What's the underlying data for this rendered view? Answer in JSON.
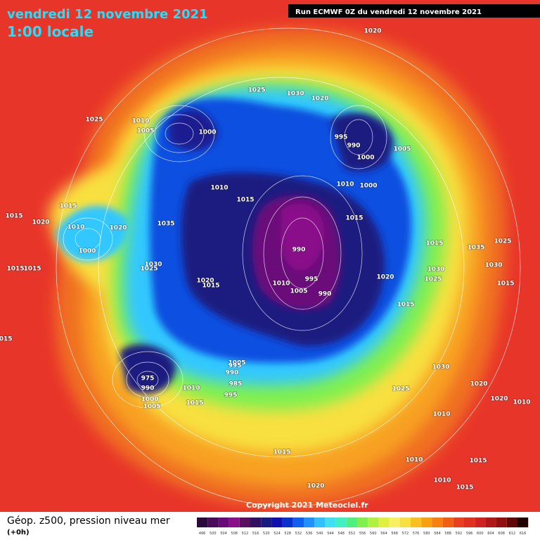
{
  "header": {
    "title": "vendredi 12 novembre 2021",
    "subtitle": "1:00 locale",
    "run": "Run ECMWF 0Z du vendredi 12 novembre 2021"
  },
  "copyright": "Copyright 2021 Meteociel.fr",
  "footer": {
    "label": "Géop. z500, pression niveau mer",
    "step": "(+0h)"
  },
  "legend": {
    "labels": [
      "496",
      "500",
      "504",
      "508",
      "512",
      "516",
      "520",
      "524",
      "528",
      "532",
      "536",
      "540",
      "544",
      "548",
      "552",
      "556",
      "560",
      "564",
      "568",
      "572",
      "576",
      "580",
      "584",
      "588",
      "592",
      "596",
      "600",
      "604",
      "608",
      "612",
      "616"
    ],
    "colors": [
      "#2a0a3a",
      "#4a0a5a",
      "#6a0a7a",
      "#8a108a",
      "#5a1060",
      "#301060",
      "#1a1a80",
      "#1010b0",
      "#0a30d0",
      "#1060f0",
      "#2090ff",
      "#30c0ff",
      "#40e0f0",
      "#40f0c0",
      "#50f080",
      "#80f050",
      "#b0f040",
      "#e0f040",
      "#f8f060",
      "#f8e040",
      "#f8c020",
      "#f8a010",
      "#f88010",
      "#f06010",
      "#e84020",
      "#e03020",
      "#d02020",
      "#b01818",
      "#901010",
      "#600808",
      "#200000"
    ]
  },
  "isobar_labels": [
    "1020",
    "1025",
    "1030",
    "1020",
    "1025",
    "1010",
    "1005",
    "1000",
    "995",
    "990",
    "1000",
    "1005",
    "1010",
    "1000",
    "1015",
    "1010",
    "1015",
    "1020",
    "1015",
    "1010",
    "1020",
    "1015",
    "1035",
    "1025",
    "1030",
    "1020",
    "1015",
    "1010",
    "990",
    "995",
    "1000",
    "1005",
    "990",
    "1015",
    "1020",
    "1015",
    "1030",
    "1030",
    "1035",
    "1025",
    "1025",
    "1030",
    "1015",
    "975",
    "990",
    "1005",
    "995",
    "1000",
    "1005",
    "1010",
    "1015",
    "995",
    "985",
    "990",
    "1020",
    "1025",
    "1015",
    "1020",
    "1010",
    "1010",
    "1015",
    "1010",
    "1015",
    "1010",
    "1020",
    "1015",
    "1015",
    "1015"
  ]
}
